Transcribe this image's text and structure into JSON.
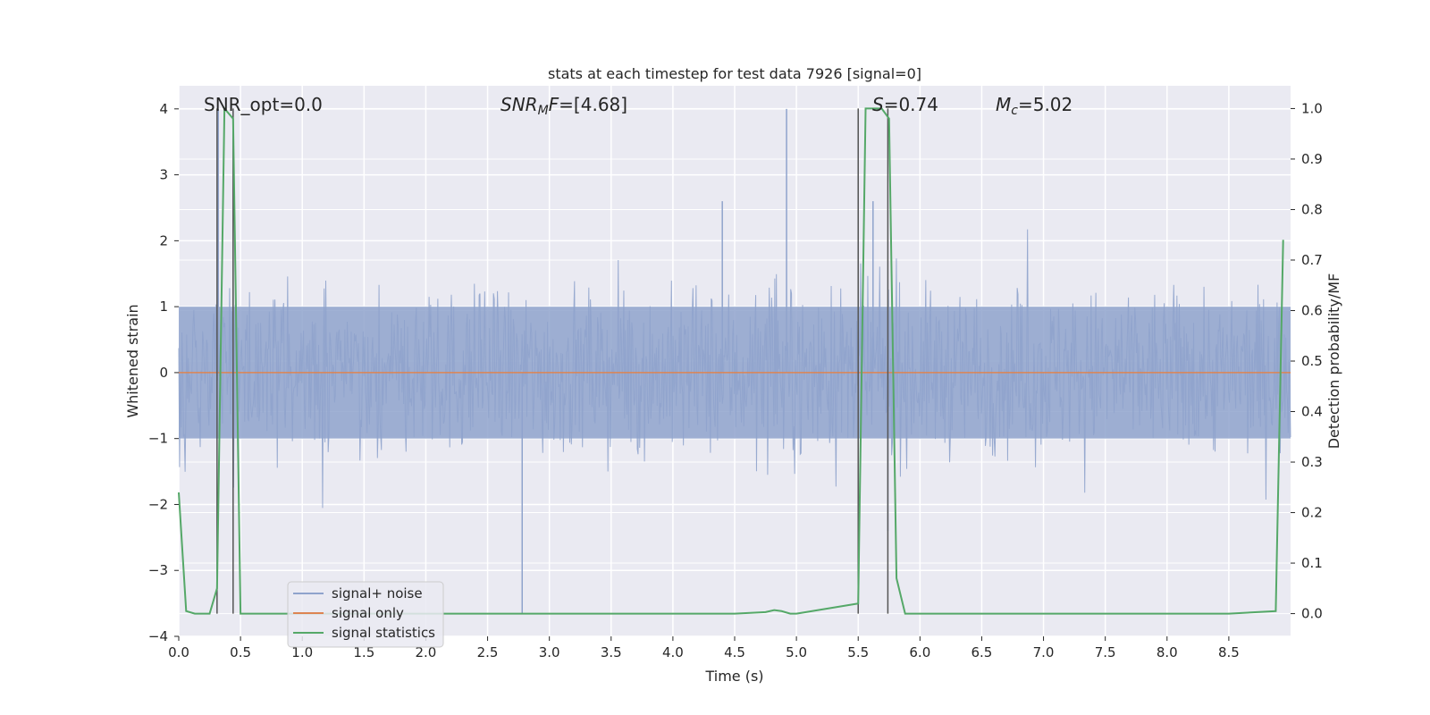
{
  "chart_data": {
    "type": "line",
    "title": "stats at each timestep for test data 7926 [signal=0]",
    "xlabel": "Time (s)",
    "ylabel": "Whitened strain",
    "y2label": "Detection probability/MF",
    "xlim": [
      0.0,
      9.0
    ],
    "ylim": [
      -4.0,
      4.35
    ],
    "y2lim": [
      -0.045,
      1.045
    ],
    "x_ticks": [
      0.0,
      0.5,
      1.0,
      1.5,
      2.0,
      2.5,
      3.0,
      3.5,
      4.0,
      4.5,
      5.0,
      5.5,
      6.0,
      6.5,
      7.0,
      7.5,
      8.0,
      8.5
    ],
    "x_tick_labels": [
      "0.0",
      "0.5",
      "1.0",
      "1.5",
      "2.0",
      "2.5",
      "3.0",
      "3.5",
      "4.0",
      "4.5",
      "5.0",
      "5.5",
      "6.0",
      "6.5",
      "7.0",
      "7.5",
      "8.0",
      "8.5"
    ],
    "y_ticks": [
      -4,
      -3,
      -2,
      -1,
      0,
      1,
      2,
      3,
      4
    ],
    "y_tick_labels": [
      "−4",
      "−3",
      "−2",
      "−1",
      "0",
      "1",
      "2",
      "3",
      "4"
    ],
    "y2_ticks": [
      0.0,
      0.1,
      0.2,
      0.3,
      0.4,
      0.5,
      0.6,
      0.7,
      0.8,
      0.9,
      1.0
    ],
    "y2_tick_labels": [
      "0.0",
      "0.1",
      "0.2",
      "0.3",
      "0.4",
      "0.5",
      "0.6",
      "0.7",
      "0.8",
      "0.9",
      "1.0"
    ],
    "annotations": {
      "snr_opt": "SNR_opt=0.0",
      "snr_mf_base": "SNR",
      "snr_mf_sub": "M",
      "snr_mf_f": "F",
      "snr_mf_value": "=[4.68]",
      "s_label": "S",
      "s_value": "=0.74",
      "mc_label": "M",
      "mc_sub": "c",
      "mc_value": "=5.02"
    },
    "legend": {
      "position": "lower-left",
      "entries": [
        "signal+ noise",
        "signal only",
        "signal statistics"
      ]
    },
    "series": [
      {
        "name": "signal+ noise",
        "color": "#8fa3cc",
        "axis": "left",
        "style": "dense-noise",
        "typical_range": [
          -1.3,
          1.6
        ],
        "peaks": [
          [
            0.32,
            4.0
          ],
          [
            0.44,
            4.0
          ],
          [
            4.92,
            4.0
          ],
          [
            5.5,
            4.0
          ],
          [
            5.74,
            -2.4
          ],
          [
            2.78,
            -3.65
          ],
          [
            5.62,
            2.6
          ],
          [
            4.4,
            2.6
          ]
        ]
      },
      {
        "name": "signal only",
        "color": "#dd8452",
        "axis": "left",
        "x": [
          0.0,
          9.0
        ],
        "values": [
          0.0,
          0.0
        ]
      },
      {
        "name": "signal statistics",
        "color": "#55a868",
        "axis": "right",
        "x": [
          0.0,
          0.06,
          0.13,
          0.25,
          0.31,
          0.37,
          0.44,
          0.5,
          1.0,
          2.0,
          3.0,
          4.0,
          4.5,
          4.75,
          4.82,
          4.88,
          4.95,
          5.0,
          5.5,
          5.56,
          5.63,
          5.69,
          5.75,
          5.81,
          5.88,
          6.0,
          7.0,
          8.0,
          8.5,
          8.88,
          8.94
        ],
        "values": [
          0.24,
          0.005,
          0.0,
          0.0,
          0.05,
          1.0,
          0.98,
          0.0,
          0.0,
          0.0,
          0.0,
          0.0,
          0.0,
          0.003,
          0.007,
          0.005,
          0.0,
          0.0,
          0.02,
          1.0,
          1.0,
          1.0,
          0.98,
          0.07,
          0.0,
          0.0,
          0.0,
          0.0,
          0.0,
          0.005,
          0.74
        ]
      }
    ],
    "vertical_lines": {
      "color": "#555555",
      "x": [
        0.31,
        0.44,
        5.5,
        5.74
      ]
    }
  }
}
